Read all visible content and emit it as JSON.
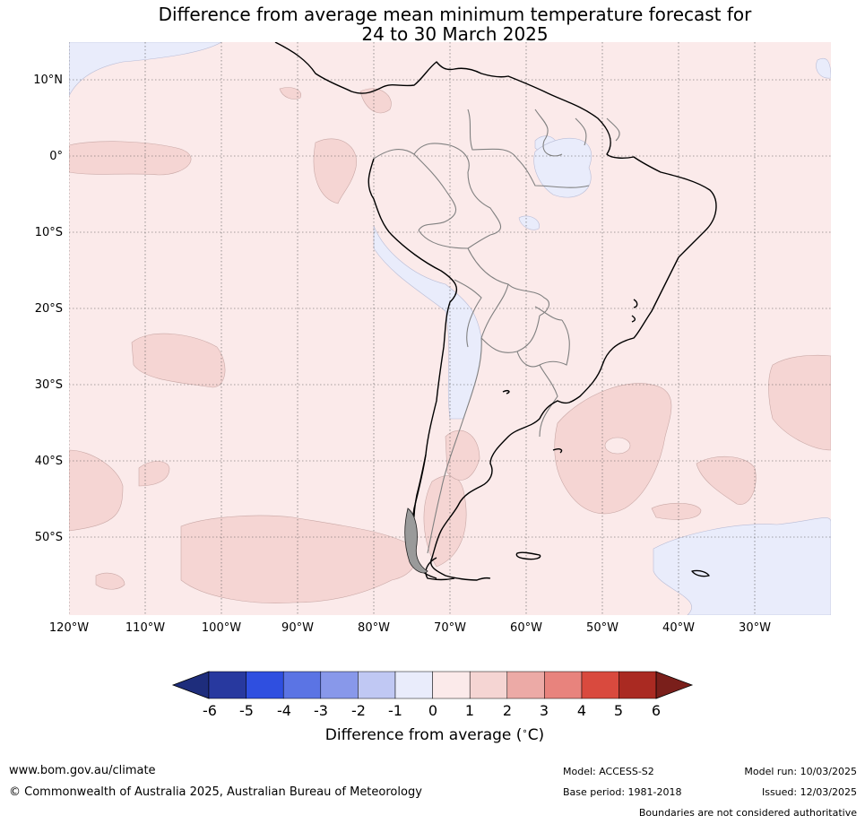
{
  "title_line1": "Difference from average mean minimum temperature forecast for",
  "title_line2": "24 to 30 March 2025",
  "lat_labels": [
    "10°N",
    "0°",
    "10°S",
    "20°S",
    "30°S",
    "40°S",
    "50°S"
  ],
  "lon_labels": [
    "120°W",
    "110°W",
    "100°W",
    "90°W",
    "80°W",
    "70°W",
    "60°W",
    "50°W",
    "40°W",
    "30°W"
  ],
  "colors": {
    "ocean_bg": "#fbeaea",
    "land_bg": "#fbeaea",
    "coast": "#000000",
    "borders": "#808080"
  },
  "colorbar": {
    "ticks": [
      "-6",
      "-5",
      "-4",
      "-3",
      "-2",
      "-1",
      "0",
      "1",
      "2",
      "3",
      "4",
      "5",
      "6"
    ],
    "colors": [
      "#28399f",
      "#2f4fe0",
      "#5b74e4",
      "#8898ea",
      "#c0c8f3",
      "#e9ecfb",
      "#fbeaea",
      "#f5d5d3",
      "#ecaaa6",
      "#e8837d",
      "#d94a3e",
      "#aa2a22"
    ],
    "under_color": "#1e2d7c",
    "over_color": "#7a1f1b",
    "label": "Difference from average ($^\\circ$C)"
  },
  "footer": {
    "website": "www.bom.gov.au/climate",
    "copyright": "© Commonwealth of Australia 2025, Australian Bureau of Meteorology",
    "model": "Model: ACCESS-S2",
    "model_run": "Model run: 10/03/2025",
    "base_period": "Base period: 1981-2018",
    "issued": "Issued: 12/03/2025",
    "disclaimer": "Boundaries are not considered authoritative"
  }
}
